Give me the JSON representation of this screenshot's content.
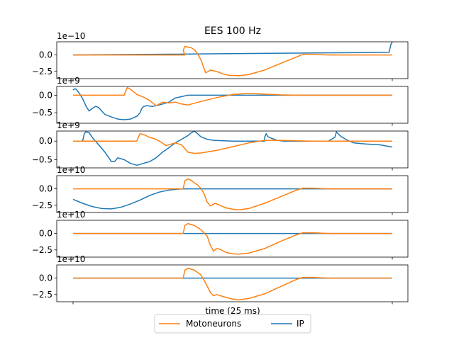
{
  "chart_data": {
    "type": "line",
    "title": "EES 100 Hz",
    "xlabel": "time (25 ms)",
    "legend": {
      "placement": "bottom-center",
      "ncol": 2,
      "entries": [
        {
          "name": "Motoneurons",
          "color": "#ff7f0e"
        },
        {
          "name": "IP",
          "color": "#1f77b4"
        }
      ]
    },
    "grid": false,
    "panels": [
      {
        "offset_text": "1e−10",
        "yticks": [
          "0.0",
          "−2.5"
        ],
        "tick_values": [
          0.0,
          -2.5
        ],
        "ylim": [
          -3.6,
          2.0
        ],
        "series": [
          {
            "name": "Motoneurons",
            "color": "#ff7f0e",
            "x": [
              0,
              0.35,
              0.345,
              0.35,
              0.37,
              0.38,
              0.39,
              0.4,
              0.41,
              0.415,
              0.42,
              0.43,
              0.44,
              0.455,
              0.47,
              0.49,
              0.52,
              0.55,
              0.6,
              0.65,
              0.7,
              0.72,
              0.74,
              0.8,
              0.9,
              1.0
            ],
            "y": [
              0,
              0,
              0.7,
              1.3,
              1.1,
              0.8,
              0.2,
              -0.7,
              -2.0,
              -2.7,
              -2.6,
              -2.3,
              -2.4,
              -2.6,
              -2.9,
              -3.1,
              -3.15,
              -3.0,
              -2.3,
              -1.3,
              -0.3,
              0.1,
              0.1,
              0,
              0,
              0
            ]
          },
          {
            "name": "IP",
            "color": "#1f77b4",
            "x": [
              0,
              0.99,
              0.995,
              1.0
            ],
            "y": [
              0,
              0.4,
              1.5,
              2.0
            ]
          }
        ]
      },
      {
        "offset_text": "1e+9",
        "yticks": [
          "0.0",
          "−0.5"
        ],
        "tick_values": [
          0.0,
          -0.5
        ],
        "ylim": [
          -0.8,
          0.25
        ],
        "series": [
          {
            "name": "Motoneurons",
            "color": "#ff7f0e",
            "x": [
              0,
              0.16,
              0.165,
              0.17,
              0.18,
              0.2,
              0.22,
              0.24,
              0.26,
              0.27,
              0.28,
              0.3,
              0.32,
              0.34,
              0.36,
              0.4,
              0.45,
              0.5,
              0.55,
              0.6,
              0.65,
              0.7,
              1.0
            ],
            "y": [
              0,
              0,
              0.12,
              0.22,
              0.17,
              0.02,
              -0.05,
              -0.15,
              -0.3,
              -0.25,
              -0.2,
              -0.22,
              -0.2,
              -0.25,
              -0.28,
              -0.18,
              -0.07,
              0.02,
              0.05,
              0.03,
              0.01,
              0,
              0
            ]
          },
          {
            "name": "IP",
            "color": "#1f77b4",
            "x": [
              0,
              0.005,
              0.01,
              0.02,
              0.03,
              0.04,
              0.05,
              0.06,
              0.07,
              0.08,
              0.09,
              0.1,
              0.12,
              0.14,
              0.16,
              0.18,
              0.2,
              0.21,
              0.215,
              0.22,
              0.23,
              0.25,
              0.27,
              0.3,
              0.32,
              0.35,
              0.36,
              0.4,
              0.45,
              1.0
            ],
            "y": [
              0.15,
              0.18,
              0.17,
              0.05,
              -0.1,
              -0.3,
              -0.45,
              -0.38,
              -0.32,
              -0.35,
              -0.45,
              -0.55,
              -0.62,
              -0.68,
              -0.7,
              -0.68,
              -0.6,
              -0.5,
              -0.38,
              -0.33,
              -0.3,
              -0.32,
              -0.28,
              -0.2,
              -0.08,
              -0.02,
              0,
              0,
              0,
              0
            ]
          }
        ]
      },
      {
        "offset_text": "1e+9",
        "yticks": [
          "0.0",
          "−0.5"
        ],
        "tick_values": [
          0.0,
          -0.5
        ],
        "ylim": [
          -0.72,
          0.27
        ],
        "series": [
          {
            "name": "Motoneurons",
            "color": "#ff7f0e",
            "x": [
              0,
              0.2,
              0.205,
              0.21,
              0.22,
              0.24,
              0.26,
              0.28,
              0.29,
              0.3,
              0.32,
              0.34,
              0.36,
              0.38,
              0.4,
              0.45,
              0.5,
              0.55,
              0.6,
              0.65,
              0.7,
              0.75,
              1.0
            ],
            "y": [
              0,
              0,
              0.12,
              0.2,
              0.18,
              0.1,
              0.05,
              -0.05,
              -0.12,
              -0.1,
              -0.05,
              -0.1,
              -0.3,
              -0.33,
              -0.32,
              -0.25,
              -0.15,
              -0.05,
              0.02,
              0.02,
              0.01,
              0,
              0
            ]
          },
          {
            "name": "IP",
            "color": "#1f77b4",
            "x": [
              0,
              0.03,
              0.035,
              0.04,
              0.05,
              0.06,
              0.07,
              0.08,
              0.1,
              0.12,
              0.13,
              0.14,
              0.16,
              0.18,
              0.2,
              0.22,
              0.24,
              0.26,
              0.28,
              0.3,
              0.32,
              0.34,
              0.36,
              0.37,
              0.38,
              0.39,
              0.4,
              0.42,
              0.44,
              0.5,
              0.55,
              0.6,
              0.6,
              0.605,
              0.61,
              0.62,
              0.64,
              0.66,
              0.7,
              0.8,
              0.82,
              0.825,
              0.83,
              0.84,
              0.86,
              0.88,
              0.92,
              0.96,
              1.0
            ],
            "y": [
              0,
              0,
              0.2,
              0.25,
              0.23,
              0.1,
              0,
              -0.1,
              -0.3,
              -0.55,
              -0.55,
              -0.45,
              -0.5,
              -0.6,
              -0.65,
              -0.6,
              -0.55,
              -0.45,
              -0.3,
              -0.18,
              -0.05,
              0.05,
              0.15,
              0.22,
              0.27,
              0.2,
              0.12,
              0.05,
              0.02,
              0,
              0,
              0,
              0.1,
              0.2,
              0.12,
              0.08,
              0.02,
              0,
              0,
              0,
              0.1,
              0.25,
              0.2,
              0.12,
              0.02,
              -0.05,
              -0.08,
              -0.1,
              -0.16
            ]
          }
        ]
      },
      {
        "offset_text": "1e+10",
        "yticks": [
          "0.0",
          "−2.5"
        ],
        "tick_values": [
          0.0,
          -2.5
        ],
        "ylim": [
          -3.6,
          2.0
        ],
        "series": [
          {
            "name": "Motoneurons",
            "color": "#ff7f0e",
            "x": [
              0,
              0.345,
              0.35,
              0.36,
              0.37,
              0.38,
              0.39,
              0.4,
              0.41,
              0.42,
              0.43,
              0.445,
              0.46,
              0.48,
              0.5,
              0.52,
              0.55,
              0.6,
              0.65,
              0.7,
              0.72,
              0.75,
              0.8,
              1.0
            ],
            "y": [
              0,
              0,
              1.2,
              1.5,
              1.3,
              0.9,
              0.6,
              0.1,
              -0.7,
              -2.0,
              -2.6,
              -2.2,
              -2.5,
              -2.9,
              -3.1,
              -3.2,
              -3.0,
              -2.2,
              -1.2,
              -0.2,
              0.1,
              0.1,
              0,
              0
            ]
          },
          {
            "name": "IP",
            "color": "#1f77b4",
            "x": [
              0,
              0.03,
              0.06,
              0.09,
              0.12,
              0.15,
              0.18,
              0.21,
              0.24,
              0.27,
              0.3,
              0.33,
              0.36,
              0.4,
              0.5,
              1.0
            ],
            "y": [
              -1.6,
              -2.2,
              -2.7,
              -3.0,
              -3.05,
              -2.8,
              -2.3,
              -1.7,
              -1.0,
              -0.5,
              -0.2,
              -0.05,
              0,
              0,
              0,
              0
            ]
          }
        ]
      },
      {
        "offset_text": "1e+10",
        "yticks": [
          "0.0",
          "−2.5"
        ],
        "tick_values": [
          0.0,
          -2.5
        ],
        "ylim": [
          -3.6,
          2.0
        ],
        "series": [
          {
            "name": "Motoneurons",
            "color": "#ff7f0e",
            "x": [
              0,
              0.345,
              0.35,
              0.36,
              0.38,
              0.4,
              0.42,
              0.43,
              0.44,
              0.45,
              0.46,
              0.48,
              0.5,
              0.52,
              0.55,
              0.6,
              0.65,
              0.7,
              0.72,
              0.75,
              0.8,
              1.0
            ],
            "y": [
              0,
              0,
              1.2,
              1.5,
              1.2,
              0.6,
              -0.4,
              -1.8,
              -2.7,
              -2.3,
              -2.4,
              -2.9,
              -3.1,
              -3.15,
              -3.0,
              -2.3,
              -1.2,
              -0.2,
              0.1,
              0.1,
              0,
              0
            ]
          },
          {
            "name": "IP",
            "color": "#1f77b4",
            "x": [
              0,
              1.0
            ],
            "y": [
              0,
              0
            ]
          }
        ]
      },
      {
        "offset_text": "1e+10",
        "yticks": [
          "0.0",
          "−2.5"
        ],
        "tick_values": [
          0.0,
          -2.5
        ],
        "ylim": [
          -3.6,
          2.0
        ],
        "series": [
          {
            "name": "Motoneurons",
            "color": "#ff7f0e",
            "x": [
              0,
              0.345,
              0.35,
              0.36,
              0.38,
              0.4,
              0.41,
              0.42,
              0.43,
              0.44,
              0.45,
              0.47,
              0.5,
              0.52,
              0.55,
              0.6,
              0.65,
              0.7,
              0.72,
              0.75,
              0.8,
              1.0
            ],
            "y": [
              0,
              0,
              1.2,
              1.5,
              1.2,
              0.5,
              -0.3,
              -1.2,
              -2.2,
              -2.7,
              -2.5,
              -2.8,
              -3.2,
              -3.3,
              -3.1,
              -2.4,
              -1.3,
              -0.2,
              0.1,
              0.1,
              0,
              0
            ]
          },
          {
            "name": "IP",
            "color": "#1f77b4",
            "x": [
              0,
              1.0
            ],
            "y": [
              0,
              0
            ]
          }
        ]
      }
    ]
  }
}
